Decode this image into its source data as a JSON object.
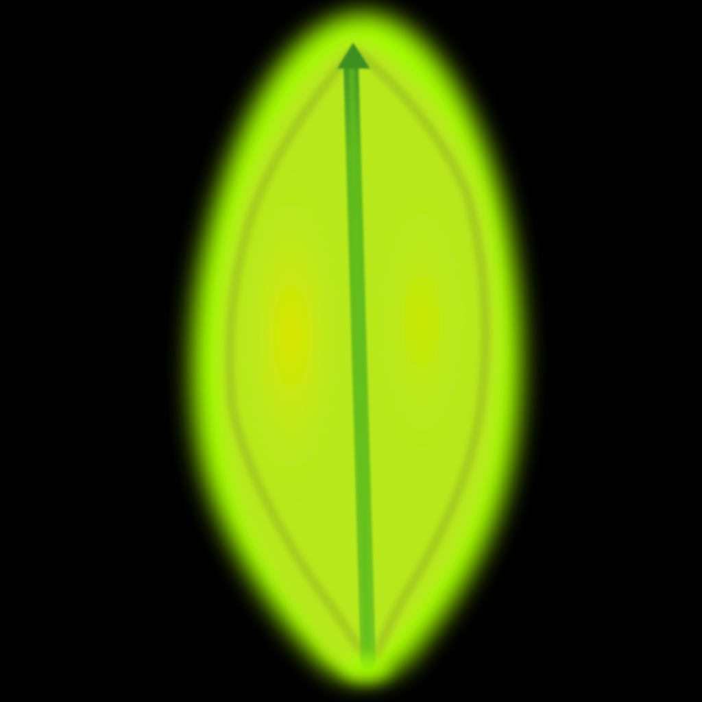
{
  "scene": {
    "subject": "glowing-leaf-icon",
    "colors": {
      "background": "#000000",
      "glow": "#a4ff00",
      "body": "#b6e81e",
      "inner_highlight": "#d8e600",
      "edge": "#9fc21c",
      "midrib": "#5fc01f",
      "midrib_tip": "#3d8f22"
    }
  }
}
